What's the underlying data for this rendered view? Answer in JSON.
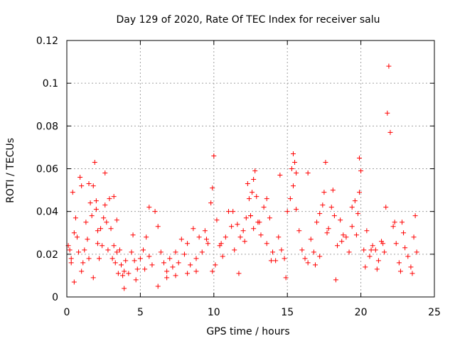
{
  "chart_data": {
    "type": "scatter",
    "title": "Day 129 of 2020, Rate Of TEC Index for receiver salu",
    "xlabel": "GPS time / hours",
    "ylabel": "ROTI / TECUs",
    "xlim": [
      0,
      25
    ],
    "ylim": [
      0,
      0.12
    ],
    "grid": true,
    "marker": "+",
    "color": "#ff0000",
    "x_ticks": [
      0,
      5,
      10,
      15,
      20,
      25
    ],
    "x_tick_labels": [
      "0",
      "5",
      "10",
      "15",
      "20",
      "25"
    ],
    "y_ticks": [
      0,
      0.02,
      0.04,
      0.06,
      0.08,
      0.1,
      0.12
    ],
    "y_tick_labels": [
      "0",
      "0.02",
      "0.04",
      "0.06",
      "0.08",
      "0.1",
      "0.12"
    ],
    "series": [
      {
        "name": "ROTI",
        "x": [
          0.1,
          0.2,
          0.3,
          0.4,
          0.5,
          0.6,
          0.7,
          0.8,
          0.9,
          1.0,
          1.1,
          1.2,
          1.3,
          1.4,
          1.5,
          1.6,
          1.7,
          1.8,
          1.9,
          2.0,
          2.1,
          2.2,
          2.3,
          2.4,
          2.5,
          2.6,
          2.7,
          2.8,
          2.9,
          3.0,
          3.1,
          3.2,
          3.3,
          3.4,
          3.5,
          3.6,
          3.7,
          3.8,
          3.9,
          4.0,
          4.2,
          4.4,
          4.6,
          4.8,
          5.0,
          5.2,
          5.4,
          5.6,
          5.8,
          6.0,
          6.2,
          6.4,
          6.6,
          6.8,
          7.0,
          7.2,
          7.4,
          7.6,
          7.8,
          8.0,
          8.2,
          8.4,
          8.6,
          8.8,
          9.0,
          9.2,
          9.4,
          9.6,
          9.8,
          9.9,
          10.0,
          10.2,
          10.4,
          10.6,
          10.8,
          11.0,
          11.2,
          11.4,
          11.6,
          11.8,
          12.0,
          12.1,
          12.2,
          12.3,
          12.4,
          12.5,
          12.6,
          12.7,
          12.8,
          12.9,
          13.0,
          13.2,
          13.4,
          13.6,
          13.8,
          14.0,
          14.2,
          14.4,
          14.6,
          14.8,
          15.0,
          15.2,
          15.3,
          15.4,
          15.5,
          15.6,
          15.8,
          16.0,
          16.2,
          16.4,
          16.6,
          16.8,
          17.0,
          17.2,
          17.4,
          17.5,
          17.6,
          17.8,
          18.0,
          18.2,
          18.4,
          18.6,
          18.8,
          19.0,
          19.2,
          19.4,
          19.6,
          19.7,
          19.8,
          19.9,
          20.0,
          20.2,
          20.4,
          20.6,
          20.8,
          21.0,
          21.2,
          21.4,
          21.6,
          21.7,
          21.8,
          21.9,
          22.0,
          22.2,
          22.4,
          22.6,
          22.8,
          23.0,
          23.2,
          23.4,
          23.6,
          23.8,
          0.3,
          1.0,
          1.5,
          2.0,
          2.1,
          2.6,
          3.2,
          3.4,
          4.5,
          5.6,
          6.2,
          6.8,
          8.2,
          9.5,
          9.9,
          10.5,
          11.3,
          12.5,
          12.7,
          13.1,
          13.6,
          14.5,
          15.4,
          15.6,
          16.4,
          17.2,
          17.7,
          18.1,
          18.7,
          19.4,
          19.9,
          20.7,
          21.5,
          22.3,
          22.9,
          23.7,
          0.5,
          1.8,
          3.9,
          4.7,
          5.3,
          7.4,
          8.8,
          10.1,
          11.7,
          13.9,
          14.9,
          16.9,
          18.3,
          20.3,
          21.1,
          22.7,
          23.5
        ],
        "y": [
          0.024,
          0.022,
          0.018,
          0.049,
          0.03,
          0.037,
          0.028,
          0.021,
          0.056,
          0.052,
          0.016,
          0.022,
          0.035,
          0.027,
          0.018,
          0.044,
          0.038,
          0.052,
          0.063,
          0.041,
          0.025,
          0.018,
          0.032,
          0.024,
          0.037,
          0.043,
          0.035,
          0.022,
          0.046,
          0.032,
          0.018,
          0.024,
          0.016,
          0.021,
          0.011,
          0.022,
          0.015,
          0.01,
          0.012,
          0.017,
          0.011,
          0.021,
          0.017,
          0.013,
          0.018,
          0.022,
          0.028,
          0.019,
          0.015,
          0.04,
          0.033,
          0.021,
          0.016,
          0.012,
          0.018,
          0.014,
          0.021,
          0.016,
          0.027,
          0.02,
          0.025,
          0.015,
          0.032,
          0.018,
          0.028,
          0.021,
          0.031,
          0.025,
          0.044,
          0.051,
          0.066,
          0.036,
          0.024,
          0.019,
          0.028,
          0.04,
          0.033,
          0.022,
          0.034,
          0.028,
          0.031,
          0.026,
          0.037,
          0.053,
          0.046,
          0.038,
          0.049,
          0.055,
          0.059,
          0.047,
          0.035,
          0.029,
          0.042,
          0.025,
          0.037,
          0.021,
          0.017,
          0.028,
          0.022,
          0.018,
          0.04,
          0.046,
          0.06,
          0.067,
          0.063,
          0.058,
          0.031,
          0.022,
          0.018,
          0.016,
          0.027,
          0.021,
          0.035,
          0.019,
          0.043,
          0.049,
          0.063,
          0.032,
          0.042,
          0.038,
          0.024,
          0.036,
          0.029,
          0.028,
          0.021,
          0.033,
          0.045,
          0.029,
          0.039,
          0.065,
          0.059,
          0.022,
          0.031,
          0.019,
          0.024,
          0.022,
          0.017,
          0.026,
          0.021,
          0.042,
          0.086,
          0.108,
          0.077,
          0.033,
          0.025,
          0.016,
          0.035,
          0.023,
          0.019,
          0.014,
          0.028,
          0.021,
          0.016,
          0.012,
          0.053,
          0.045,
          0.031,
          0.058,
          0.047,
          0.036,
          0.029,
          0.042,
          0.005,
          0.009,
          0.011,
          0.027,
          0.012,
          0.025,
          0.04,
          0.038,
          0.032,
          0.035,
          0.046,
          0.057,
          0.052,
          0.041,
          0.058,
          0.039,
          0.03,
          0.05,
          0.026,
          0.042,
          0.049,
          0.022,
          0.025,
          0.035,
          0.03,
          0.038,
          0.007,
          0.009,
          0.004,
          0.008,
          0.013,
          0.01,
          0.012,
          0.015,
          0.011,
          0.017,
          0.009,
          0.015,
          0.008,
          0.014,
          0.013,
          0.012,
          0.011
        ]
      }
    ]
  }
}
